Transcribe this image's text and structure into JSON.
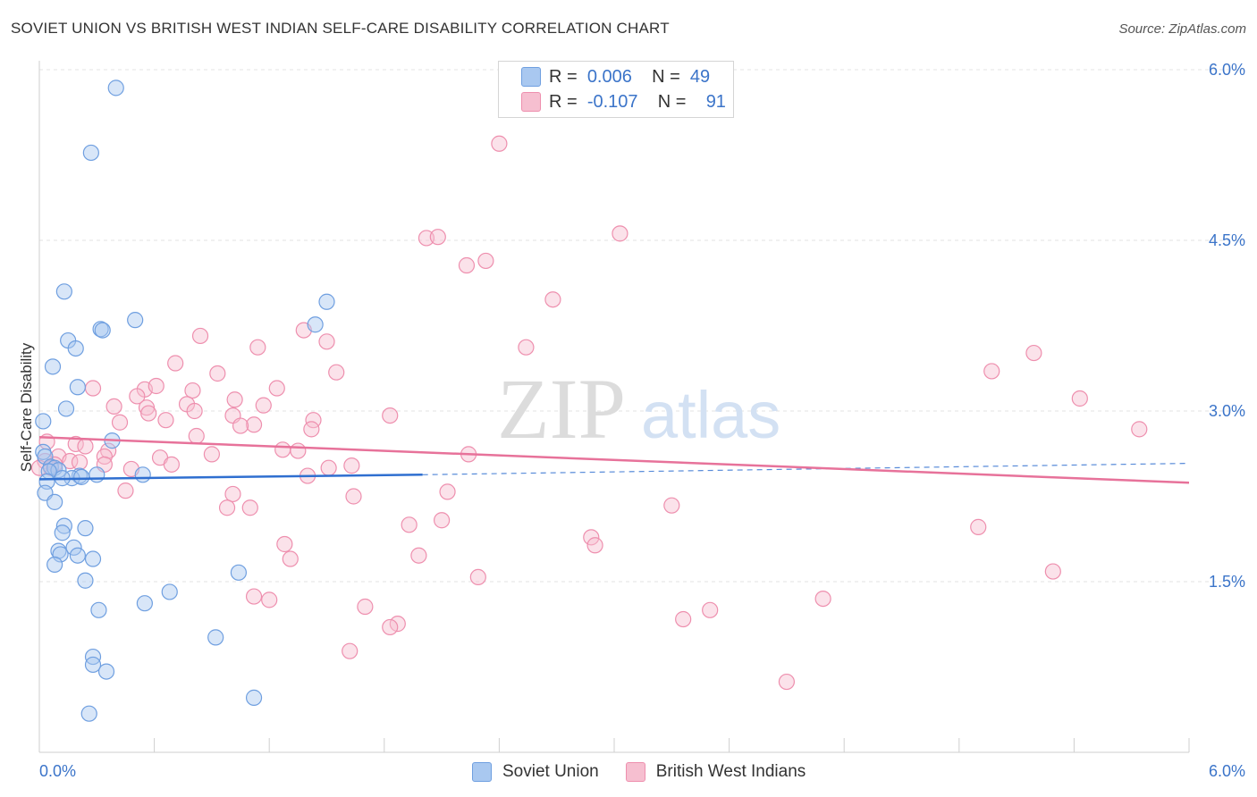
{
  "title": "SOVIET UNION VS BRITISH WEST INDIAN SELF-CARE DISABILITY CORRELATION CHART",
  "source": "Source: ZipAtlas.com",
  "watermark": {
    "zip": "ZIP",
    "atlas": "atlas"
  },
  "legend_top": [
    {
      "r_label": "R =",
      "r_value": "0.006",
      "n_label": "N =",
      "n_value": "49"
    },
    {
      "r_label": "R =",
      "r_value": "-0.107",
      "n_label": "N =",
      "n_value": "91"
    }
  ],
  "legend_bottom": [
    "Soviet Union",
    "British West Indians"
  ],
  "colors": {
    "soviet_fill": "#a9c8f0",
    "soviet_stroke": "#6f9fe0",
    "soviet_line": "#2f6fd0",
    "bwi_fill": "#f6bfd0",
    "bwi_stroke": "#ee8fae",
    "bwi_line": "#e7729a",
    "axis_text": "#3b74c9",
    "grid": "#e3e3e3"
  },
  "chart_data": {
    "type": "scatter",
    "title": "SOVIET UNION VS BRITISH WEST INDIAN SELF-CARE DISABILITY CORRELATION CHART",
    "xlabel": "",
    "ylabel": "Self-Care Disability",
    "xlim": [
      0,
      6.0
    ],
    "ylim": [
      0,
      6.0
    ],
    "x_tick_labels": [
      "0.0%",
      "6.0%"
    ],
    "y_ticks": [
      1.5,
      3.0,
      4.5,
      6.0
    ],
    "y_tick_labels": [
      "1.5%",
      "3.0%",
      "4.5%",
      "6.0%"
    ],
    "grid": "horizontal dashed",
    "legend": "top-center and bottom-center",
    "series": [
      {
        "name": "Soviet Union",
        "r": 0.006,
        "n": 49,
        "trend": {
          "x": [
            0.0,
            2.0
          ],
          "y": [
            2.4,
            2.44
          ],
          "dashed_to": [
            6.0,
            2.54
          ]
        },
        "points": [
          [
            0.4,
            5.84
          ],
          [
            0.27,
            5.27
          ],
          [
            0.13,
            4.05
          ],
          [
            0.5,
            3.8
          ],
          [
            1.5,
            3.96
          ],
          [
            1.44,
            3.76
          ],
          [
            0.32,
            3.72
          ],
          [
            0.33,
            3.71
          ],
          [
            0.15,
            3.62
          ],
          [
            0.19,
            3.55
          ],
          [
            0.07,
            3.39
          ],
          [
            0.2,
            3.21
          ],
          [
            0.14,
            3.02
          ],
          [
            0.02,
            2.91
          ],
          [
            0.38,
            2.74
          ],
          [
            0.02,
            2.64
          ],
          [
            0.03,
            2.6
          ],
          [
            0.06,
            2.51
          ],
          [
            0.08,
            2.5
          ],
          [
            0.1,
            2.48
          ],
          [
            0.05,
            2.47
          ],
          [
            0.21,
            2.43
          ],
          [
            0.3,
            2.44
          ],
          [
            0.54,
            2.44
          ],
          [
            0.17,
            2.41
          ],
          [
            0.12,
            2.41
          ],
          [
            0.22,
            2.42
          ],
          [
            0.04,
            2.38
          ],
          [
            0.03,
            2.28
          ],
          [
            0.08,
            2.2
          ],
          [
            0.13,
            1.99
          ],
          [
            0.12,
            1.93
          ],
          [
            0.24,
            1.97
          ],
          [
            0.18,
            1.8
          ],
          [
            0.1,
            1.77
          ],
          [
            0.11,
            1.74
          ],
          [
            0.2,
            1.73
          ],
          [
            0.28,
            1.7
          ],
          [
            0.08,
            1.65
          ],
          [
            0.24,
            1.51
          ],
          [
            1.04,
            1.58
          ],
          [
            0.68,
            1.41
          ],
          [
            0.55,
            1.31
          ],
          [
            0.31,
            1.25
          ],
          [
            0.92,
            1.01
          ],
          [
            0.28,
            0.84
          ],
          [
            0.28,
            0.77
          ],
          [
            0.35,
            0.71
          ],
          [
            1.12,
            0.48
          ],
          [
            0.26,
            0.34
          ]
        ]
      },
      {
        "name": "British West Indians",
        "r": -0.107,
        "n": 91,
        "trend": {
          "x": [
            0.0,
            6.0
          ],
          "y": [
            2.77,
            2.37
          ]
        },
        "points": [
          [
            2.4,
            5.35
          ],
          [
            3.03,
            4.56
          ],
          [
            2.02,
            4.52
          ],
          [
            2.08,
            4.53
          ],
          [
            2.23,
            4.28
          ],
          [
            2.33,
            4.32
          ],
          [
            2.68,
            3.98
          ],
          [
            0.84,
            3.66
          ],
          [
            1.38,
            3.71
          ],
          [
            1.5,
            3.61
          ],
          [
            1.14,
            3.56
          ],
          [
            2.54,
            3.56
          ],
          [
            0.71,
            3.42
          ],
          [
            0.93,
            3.33
          ],
          [
            1.55,
            3.34
          ],
          [
            4.97,
            3.35
          ],
          [
            5.19,
            3.51
          ],
          [
            0.28,
            3.2
          ],
          [
            0.55,
            3.19
          ],
          [
            0.61,
            3.22
          ],
          [
            0.8,
            3.18
          ],
          [
            1.24,
            3.2
          ],
          [
            5.43,
            3.11
          ],
          [
            0.51,
            3.13
          ],
          [
            1.02,
            3.1
          ],
          [
            0.77,
            3.06
          ],
          [
            1.17,
            3.05
          ],
          [
            0.39,
            3.04
          ],
          [
            0.56,
            3.03
          ],
          [
            0.57,
            2.98
          ],
          [
            0.81,
            3.0
          ],
          [
            1.01,
            2.96
          ],
          [
            1.83,
            2.96
          ],
          [
            1.43,
            2.92
          ],
          [
            0.42,
            2.9
          ],
          [
            0.66,
            2.92
          ],
          [
            1.12,
            2.88
          ],
          [
            1.05,
            2.87
          ],
          [
            1.42,
            2.84
          ],
          [
            0.82,
            2.78
          ],
          [
            5.74,
            2.84
          ],
          [
            0.04,
            2.73
          ],
          [
            0.19,
            2.71
          ],
          [
            0.24,
            2.69
          ],
          [
            0.36,
            2.65
          ],
          [
            1.27,
            2.66
          ],
          [
            1.35,
            2.65
          ],
          [
            0.1,
            2.6
          ],
          [
            0.16,
            2.56
          ],
          [
            0.21,
            2.55
          ],
          [
            0.34,
            2.6
          ],
          [
            0.63,
            2.59
          ],
          [
            0.9,
            2.62
          ],
          [
            2.24,
            2.62
          ],
          [
            0.08,
            2.53
          ],
          [
            0.03,
            2.56
          ],
          [
            0.06,
            2.5
          ],
          [
            0.34,
            2.53
          ],
          [
            0.69,
            2.53
          ],
          [
            1.51,
            2.5
          ],
          [
            1.63,
            2.52
          ],
          [
            0.48,
            2.49
          ],
          [
            1.4,
            2.43
          ],
          [
            0.45,
            2.3
          ],
          [
            2.13,
            2.29
          ],
          [
            1.01,
            2.27
          ],
          [
            1.64,
            2.25
          ],
          [
            0.98,
            2.15
          ],
          [
            1.1,
            2.15
          ],
          [
            3.3,
            2.17
          ],
          [
            2.1,
            2.04
          ],
          [
            1.93,
            2.0
          ],
          [
            4.9,
            1.98
          ],
          [
            2.88,
            1.89
          ],
          [
            2.9,
            1.82
          ],
          [
            1.28,
            1.83
          ],
          [
            1.31,
            1.7
          ],
          [
            1.98,
            1.73
          ],
          [
            2.29,
            1.54
          ],
          [
            5.29,
            1.59
          ],
          [
            1.12,
            1.37
          ],
          [
            1.2,
            1.34
          ],
          [
            4.09,
            1.35
          ],
          [
            1.7,
            1.28
          ],
          [
            3.5,
            1.25
          ],
          [
            3.36,
            1.17
          ],
          [
            1.87,
            1.13
          ],
          [
            1.83,
            1.1
          ],
          [
            1.62,
            0.89
          ],
          [
            3.9,
            0.62
          ],
          [
            0.0,
            2.5
          ]
        ]
      }
    ]
  }
}
